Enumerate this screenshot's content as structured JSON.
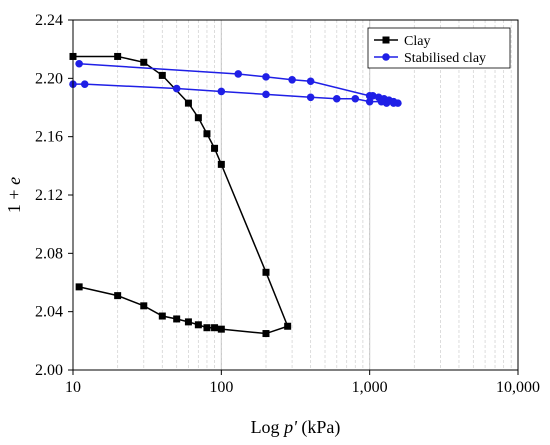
{
  "chart_data": {
    "type": "line",
    "xlabel_prefix": "Log ",
    "xlabel_var": "p'",
    "xlabel_suffix": " (kPa)",
    "ylabel_prefix": "1 + ",
    "ylabel_var": "e",
    "xscale": "log",
    "xlim": [
      10,
      10000
    ],
    "ylim": [
      2.0,
      2.24
    ],
    "xticks": [
      10,
      100,
      1000,
      10000
    ],
    "xtick_labels": [
      "10",
      "100",
      "1,000",
      "10,000"
    ],
    "yticks": [
      2.0,
      2.04,
      2.08,
      2.12,
      2.16,
      2.2,
      2.24
    ],
    "ytick_labels": [
      "2.00",
      "2.04",
      "2.08",
      "2.12",
      "2.16",
      "2.20",
      "2.24"
    ],
    "grid": "vertical minor log gridlines",
    "legend_position": "top-right",
    "series": [
      {
        "name": "Clay",
        "color": "#000000",
        "marker": "square",
        "points": [
          [
            10,
            2.215
          ],
          [
            20,
            2.215
          ],
          [
            30,
            2.211
          ],
          [
            40,
            2.202
          ],
          [
            60,
            2.183
          ],
          [
            70,
            2.173
          ],
          [
            80,
            2.162
          ],
          [
            90,
            2.152
          ],
          [
            100,
            2.141
          ],
          [
            200,
            2.067
          ],
          [
            280,
            2.03
          ],
          [
            200,
            2.025
          ],
          [
            100,
            2.028
          ],
          [
            90,
            2.029
          ],
          [
            80,
            2.029
          ],
          [
            70,
            2.031
          ],
          [
            60,
            2.033
          ],
          [
            50,
            2.035
          ],
          [
            40,
            2.037
          ],
          [
            30,
            2.044
          ],
          [
            20,
            2.051
          ],
          [
            11,
            2.057
          ]
        ]
      },
      {
        "name": "Stabilised clay",
        "color": "#1f1fe6",
        "marker": "circle",
        "points": [
          [
            11,
            2.21
          ],
          [
            130,
            2.203
          ],
          [
            200,
            2.201
          ],
          [
            300,
            2.199
          ],
          [
            400,
            2.198
          ],
          [
            1000,
            2.188
          ],
          [
            1050,
            2.188
          ],
          [
            1150,
            2.187
          ],
          [
            1250,
            2.186
          ],
          [
            1350,
            2.185
          ],
          [
            1450,
            2.184
          ],
          [
            1550,
            2.183
          ],
          [
            1450,
            2.183
          ],
          [
            1300,
            2.183
          ],
          [
            1200,
            2.184
          ],
          [
            1000,
            2.184
          ],
          [
            800,
            2.186
          ],
          [
            600,
            2.186
          ],
          [
            400,
            2.187
          ],
          [
            200,
            2.189
          ],
          [
            100,
            2.191
          ],
          [
            50,
            2.193
          ],
          [
            12,
            2.196
          ],
          [
            10,
            2.196
          ]
        ]
      }
    ]
  }
}
